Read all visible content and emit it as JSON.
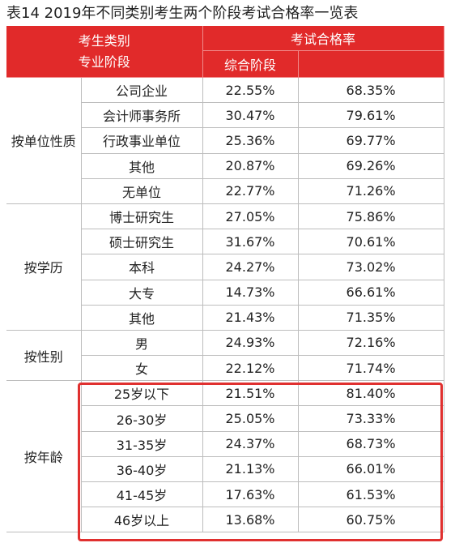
{
  "title": "表14  2019年不同类别考生两个阶段考试合格率一览表",
  "header": {
    "corner_line1": "考生类别",
    "corner_line2": "专业阶段",
    "pass_rate": "考试合格率",
    "stage": "综合阶段"
  },
  "groups": [
    {
      "label": "按单位性质",
      "rows": [
        {
          "category": "公司企业",
          "a": "22.55%",
          "b": "68.35%"
        },
        {
          "category": "会计师事务所",
          "a": "30.47%",
          "b": "79.61%"
        },
        {
          "category": "行政事业单位",
          "a": "25.36%",
          "b": "69.77%"
        },
        {
          "category": "其他",
          "a": "20.87%",
          "b": "69.26%"
        },
        {
          "category": "无单位",
          "a": "22.77%",
          "b": "71.26%"
        }
      ]
    },
    {
      "label": "按学历",
      "rows": [
        {
          "category": "博士研究生",
          "a": "27.05%",
          "b": "75.86%"
        },
        {
          "category": "硕士研究生",
          "a": "31.67%",
          "b": "70.61%"
        },
        {
          "category": "本科",
          "a": "24.27%",
          "b": "73.02%"
        },
        {
          "category": "大专",
          "a": "14.73%",
          "b": "66.61%"
        },
        {
          "category": "其他",
          "a": "21.43%",
          "b": "71.35%"
        }
      ]
    },
    {
      "label": "按性别",
      "rows": [
        {
          "category": "男",
          "a": "24.93%",
          "b": "72.16%"
        },
        {
          "category": "女",
          "a": "22.12%",
          "b": "71.74%"
        }
      ]
    },
    {
      "label": "按年龄",
      "rows": [
        {
          "category": "25岁以下",
          "a": "21.51%",
          "b": "81.40%"
        },
        {
          "category": "26-30岁",
          "a": "25.05%",
          "b": "73.33%"
        },
        {
          "category": "31-35岁",
          "a": "24.37%",
          "b": "68.73%"
        },
        {
          "category": "36-40岁",
          "a": "21.13%",
          "b": "66.01%"
        },
        {
          "category": "41-45岁",
          "a": "17.63%",
          "b": "61.53%"
        },
        {
          "category": "46岁以上",
          "a": "13.68%",
          "b": "60.75%"
        }
      ]
    }
  ],
  "colors": {
    "header_bg": "#e12a2a",
    "highlight_border": "#e0302f"
  }
}
